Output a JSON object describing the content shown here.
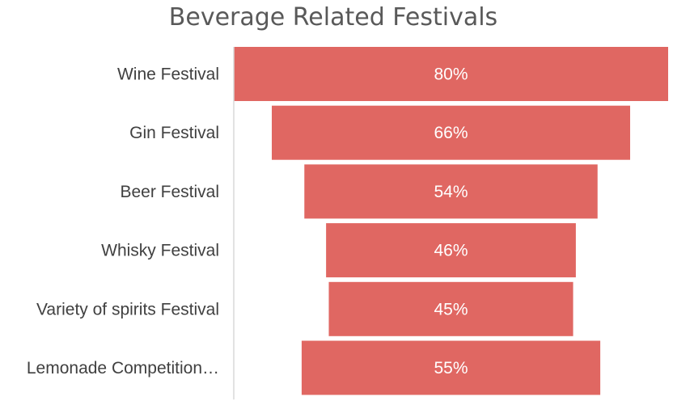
{
  "chart_data": {
    "type": "funnel",
    "title": "Beverage Related Festivals",
    "categories": [
      "Wine Festival",
      "Gin Festival",
      "Beer Festival",
      "Whisky Festival",
      "Variety of spirits Festival",
      "Lemonade Competition…"
    ],
    "values": [
      80,
      66,
      54,
      46,
      45,
      55
    ],
    "data_labels": [
      "80%",
      "66%",
      "54%",
      "46%",
      "45%",
      "55%"
    ],
    "value_unit": "%",
    "bar_color": "#E06762",
    "axis_color": "#D9D9D9"
  }
}
